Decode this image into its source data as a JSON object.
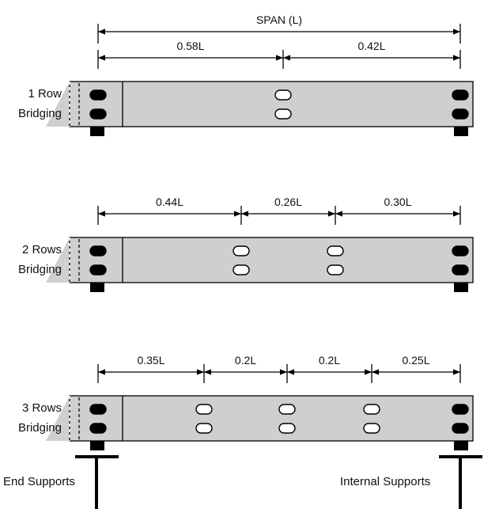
{
  "colors": {
    "beam": "#cfcfcf",
    "stroke": "#000000",
    "hole_open": "#ffffff",
    "hole_filled": "#000000"
  },
  "span_label": "SPAN (L)",
  "panels": [
    {
      "label_line1": "1 Row",
      "label_line2": "Bridging",
      "segments": [
        "0.58L",
        "0.42L"
      ]
    },
    {
      "label_line1": "2 Rows",
      "label_line2": "Bridging",
      "segments": [
        "0.44L",
        "0.26L",
        "0.30L"
      ]
    },
    {
      "label_line1": "3 Rows",
      "label_line2": "Bridging",
      "segments": [
        "0.35L",
        "0.2L",
        "0.2L",
        "0.25L"
      ]
    }
  ],
  "supports": {
    "left_label": "End Supports",
    "right_label": "Internal Supports"
  }
}
